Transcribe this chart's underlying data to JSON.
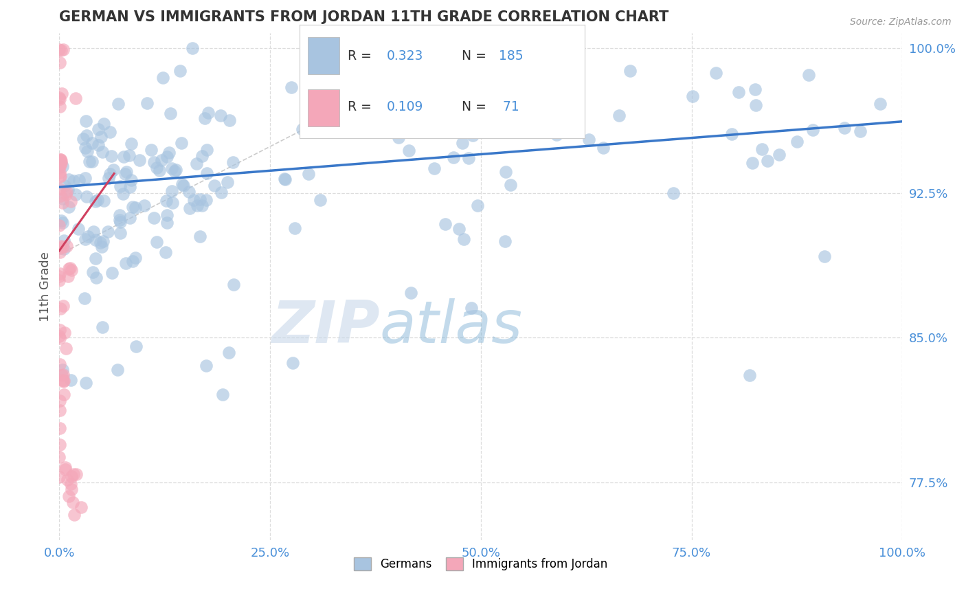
{
  "title": "GERMAN VS IMMIGRANTS FROM JORDAN 11TH GRADE CORRELATION CHART",
  "source_text": "Source: ZipAtlas.com",
  "ylabel": "11th Grade",
  "xlim": [
    0.0,
    1.0
  ],
  "ylim": [
    0.745,
    1.008
  ],
  "yticks": [
    0.775,
    0.85,
    0.925,
    1.0
  ],
  "ytick_labels": [
    "77.5%",
    "85.0%",
    "92.5%",
    "100.0%"
  ],
  "xtick_labels": [
    "0.0%",
    "25.0%",
    "50.0%",
    "75.0%",
    "100.0%"
  ],
  "xticks": [
    0.0,
    0.25,
    0.5,
    0.75,
    1.0
  ],
  "german_color": "#a8c4e0",
  "jordan_color": "#f4a7b9",
  "german_line_color": "#3a78c9",
  "jordan_line_color": "#d04060",
  "ref_line_color": "#cccccc",
  "grid_color": "#dddddd",
  "title_color": "#333333",
  "axis_label_color": "#555555",
  "tick_label_color": "#4a90d9",
  "legend_R_N_color": "#4a90d9",
  "watermark_zip_color": "#c8d8ea",
  "watermark_atlas_color": "#7bafd4",
  "background_color": "#ffffff",
  "figsize": [
    14.06,
    8.92
  ],
  "dpi": 100
}
